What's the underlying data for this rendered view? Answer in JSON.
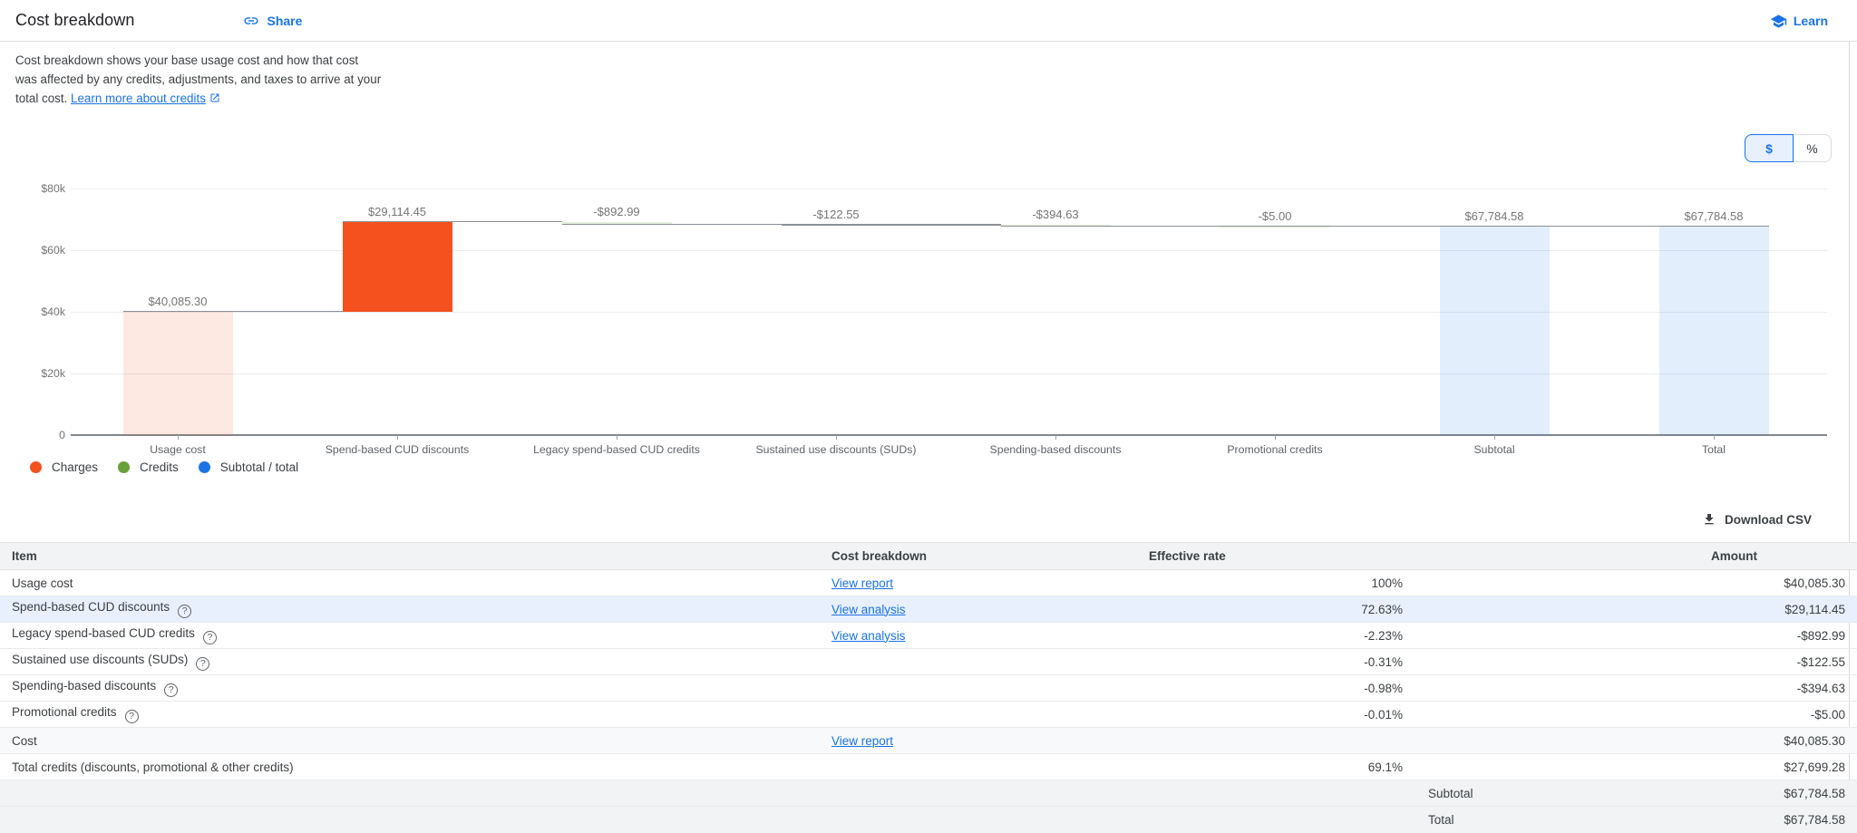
{
  "header": {
    "title": "Cost breakdown",
    "share_label": "Share",
    "learn_label": "Learn"
  },
  "description": {
    "text": "Cost breakdown shows your base usage cost and how that cost was affected by any credits, adjustments, and taxes to arrive at your total cost. ",
    "link_label": "Learn more about credits"
  },
  "toggle": {
    "dollar_label": "$",
    "percent_label": "%",
    "selected": "$"
  },
  "chart_data": {
    "type": "bar",
    "subtype": "waterfall",
    "title": "",
    "xlabel": "",
    "ylabel": "",
    "ylim": [
      0,
      80000
    ],
    "grid": true,
    "legend_position": "bottom-left",
    "ytick_values": [
      0,
      20000,
      40000,
      60000,
      80000
    ],
    "ytick_labels": [
      "0",
      "$20k",
      "$40k",
      "$60k",
      "$80k"
    ],
    "categories": [
      "Usage cost",
      "Spend-based CUD discounts",
      "Legacy spend-based CUD credits",
      "Sustained use discounts (SUDs)",
      "Spending-based discounts",
      "Promotional credits",
      "Subtotal",
      "Total"
    ],
    "bars": [
      {
        "category": "Usage cost",
        "label": "$40,085.30",
        "value": 40085.3,
        "start": 0,
        "end": 40085.3,
        "series": "charges",
        "style": "light"
      },
      {
        "category": "Spend-based CUD discounts",
        "label": "$29,114.45",
        "value": 29114.45,
        "start": 40085.3,
        "end": 69199.75,
        "series": "charges",
        "style": "solid"
      },
      {
        "category": "Legacy spend-based CUD credits",
        "label": "-$892.99",
        "value": -892.99,
        "start": 69199.75,
        "end": 68306.76,
        "series": "credits",
        "style": "light"
      },
      {
        "category": "Sustained use discounts (SUDs)",
        "label": "-$122.55",
        "value": -122.55,
        "start": 68306.76,
        "end": 68184.21,
        "series": "credits",
        "style": "light"
      },
      {
        "category": "Spending-based discounts",
        "label": "-$394.63",
        "value": -394.63,
        "start": 68184.21,
        "end": 67789.58,
        "series": "credits",
        "style": "light"
      },
      {
        "category": "Promotional credits",
        "label": "-$5.00",
        "value": -5.0,
        "start": 67789.58,
        "end": 67784.58,
        "series": "credits",
        "style": "light"
      },
      {
        "category": "Subtotal",
        "label": "$67,784.58",
        "value": 67784.58,
        "start": 0,
        "end": 67784.58,
        "series": "total",
        "style": "light"
      },
      {
        "category": "Total",
        "label": "$67,784.58",
        "value": 67784.58,
        "start": 0,
        "end": 67784.58,
        "series": "total",
        "style": "light"
      }
    ],
    "legend": [
      {
        "label": "Charges",
        "color": "#f4511e"
      },
      {
        "label": "Credits",
        "color": "#689f38"
      },
      {
        "label": "Subtotal / total",
        "color": "#1a73e8"
      }
    ]
  },
  "download": {
    "label": "Download CSV"
  },
  "table": {
    "columns": [
      "Item",
      "Cost breakdown",
      "Effective rate",
      "",
      "Amount"
    ],
    "rows": [
      {
        "item": "Usage cost",
        "help": false,
        "link": "View report",
        "rate": "100%",
        "rowlabel": "",
        "amount": "$40,085.30",
        "bg": "white"
      },
      {
        "item": "Spend-based CUD discounts",
        "help": true,
        "link": "View analysis",
        "rate": "72.63%",
        "rowlabel": "",
        "amount": "$29,114.45",
        "bg": "blue"
      },
      {
        "item": "Legacy spend-based CUD credits",
        "help": true,
        "link": "View analysis",
        "rate": "-2.23%",
        "rowlabel": "",
        "amount": "-$892.99",
        "bg": "white"
      },
      {
        "item": "Sustained use discounts (SUDs)",
        "help": true,
        "link": "",
        "rate": "-0.31%",
        "rowlabel": "",
        "amount": "-$122.55",
        "bg": "white"
      },
      {
        "item": "Spending-based discounts",
        "help": true,
        "link": "",
        "rate": "-0.98%",
        "rowlabel": "",
        "amount": "-$394.63",
        "bg": "white"
      },
      {
        "item": "Promotional credits",
        "help": true,
        "link": "",
        "rate": "-0.01%",
        "rowlabel": "",
        "amount": "-$5.00",
        "bg": "white"
      },
      {
        "item": "Cost",
        "help": false,
        "link": "View report",
        "rate": "",
        "rowlabel": "",
        "amount": "$40,085.30",
        "bg": "gray-light"
      },
      {
        "item": "Total credits (discounts, promotional & other credits)",
        "help": false,
        "link": "",
        "rate": "69.1%",
        "rowlabel": "",
        "amount": "$27,699.28",
        "bg": "white"
      },
      {
        "item": "",
        "help": false,
        "link": "",
        "rate": "",
        "rowlabel": "Subtotal",
        "amount": "$67,784.58",
        "bg": "gray"
      },
      {
        "item": "",
        "help": false,
        "link": "",
        "rate": "",
        "rowlabel": "Total",
        "amount": "$67,784.58",
        "bg": "gray"
      }
    ]
  }
}
